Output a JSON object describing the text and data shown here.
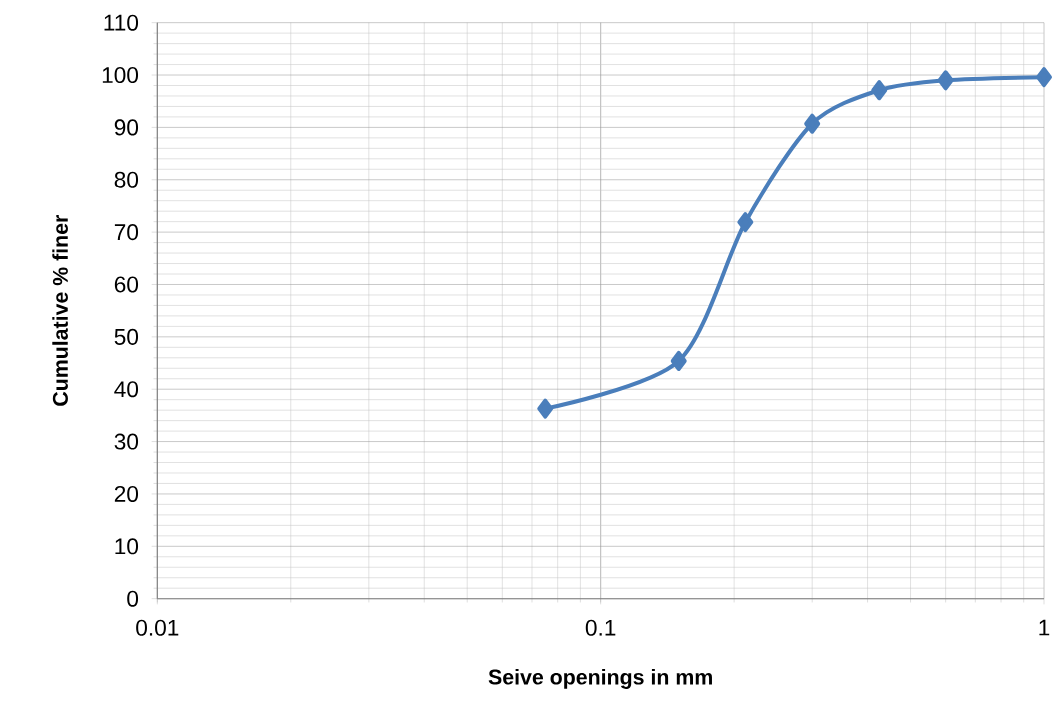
{
  "chart_data": {
    "type": "line",
    "xlabel": "Seive openings in mm",
    "ylabel": "Cumulative % finer",
    "x": [
      0.075,
      0.15,
      0.212,
      0.3,
      0.425,
      0.6,
      1
    ],
    "series": [
      {
        "color": "#4a7ebb",
        "values": [
          36.3,
          45.4,
          71.9,
          90.7,
          97.1,
          99.0,
          99.6
        ]
      }
    ],
    "xlim": [
      0.01,
      1
    ],
    "xticks": [
      0.01,
      0.1,
      1
    ],
    "ylim": [
      0,
      110
    ],
    "yticks": [
      0,
      10,
      20,
      30,
      40,
      50,
      60,
      70,
      80,
      90,
      100,
      110
    ],
    "log": "x",
    "grid": true,
    "marker": "diamond",
    "line_style": "solid"
  }
}
